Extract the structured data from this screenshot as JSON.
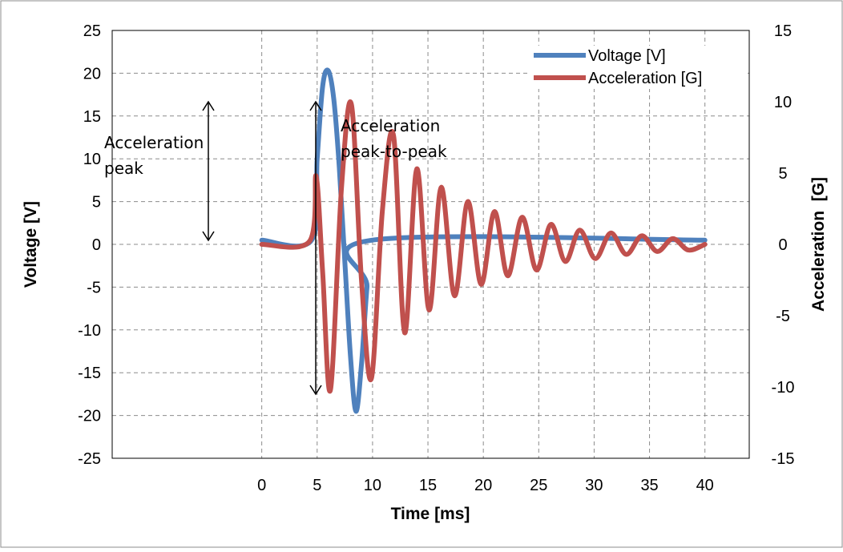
{
  "chart_data": {
    "type": "line",
    "xlabel": "Time [ms]",
    "ylabel_left": "Voltage [V]",
    "ylabel_right": "Acceleration  [G]",
    "xlim": [
      -13.5,
      44
    ],
    "x_ticks": [
      0,
      5,
      10,
      15,
      20,
      25,
      30,
      35,
      40
    ],
    "ylim_left": [
      -25,
      25
    ],
    "y_ticks_left": [
      -25,
      -20,
      -15,
      -10,
      -5,
      0,
      5,
      10,
      15,
      20,
      25
    ],
    "ylim_right": [
      -15,
      15
    ],
    "y_ticks_right": [
      -15,
      -10,
      -5,
      0,
      5,
      10,
      15
    ],
    "grid": true,
    "legend_position": "top-right",
    "colors": {
      "voltage": "#4f81bd",
      "acceleration": "#c0504d",
      "grid": "#8c8c8c"
    },
    "series": [
      {
        "name": "Voltage [V]",
        "axis": "left",
        "x": [
          0,
          4.5,
          5.0,
          5.5,
          6.0,
          6.5,
          7.0,
          7.5,
          8.0,
          8.5,
          9.0,
          9.5,
          10.0,
          40
        ],
        "y": [
          0.5,
          0.5,
          10,
          18.5,
          20.3,
          17,
          9,
          -2,
          -13,
          -19.5,
          -14,
          -5,
          0.5,
          0.5
        ]
      },
      {
        "name": "Acceleration [G]",
        "axis": "right",
        "x": [
          0,
          4.3,
          4.9,
          5.5,
          6.2,
          7.2,
          8.1,
          9.0,
          9.9,
          10.9,
          11.9,
          12.9,
          14.0,
          15.1,
          16.2,
          17.4,
          18.6,
          19.8,
          21.0,
          22.2,
          23.5,
          24.8,
          26.1,
          27.4,
          28.7,
          30.1,
          31.5,
          32.9,
          34.3,
          35.7,
          37.1,
          38.5,
          40.0
        ],
        "y": [
          0,
          0.2,
          4.8,
          -2.0,
          -10.2,
          4.0,
          9.8,
          -2.5,
          -9.4,
          2.5,
          7.6,
          -6.2,
          5.3,
          -4.6,
          4.0,
          -3.6,
          3.0,
          -2.8,
          2.3,
          -2.2,
          1.9,
          -1.8,
          1.4,
          -1.2,
          1.0,
          -1.0,
          0.8,
          -0.7,
          0.6,
          -0.5,
          0.4,
          -0.4,
          0
        ]
      }
    ],
    "annotations": [
      {
        "text_line1": "Acceleration",
        "text_line2": "peak"
      },
      {
        "text_line1": "Acceleration",
        "text_line2": "peak-to-peak"
      }
    ]
  }
}
